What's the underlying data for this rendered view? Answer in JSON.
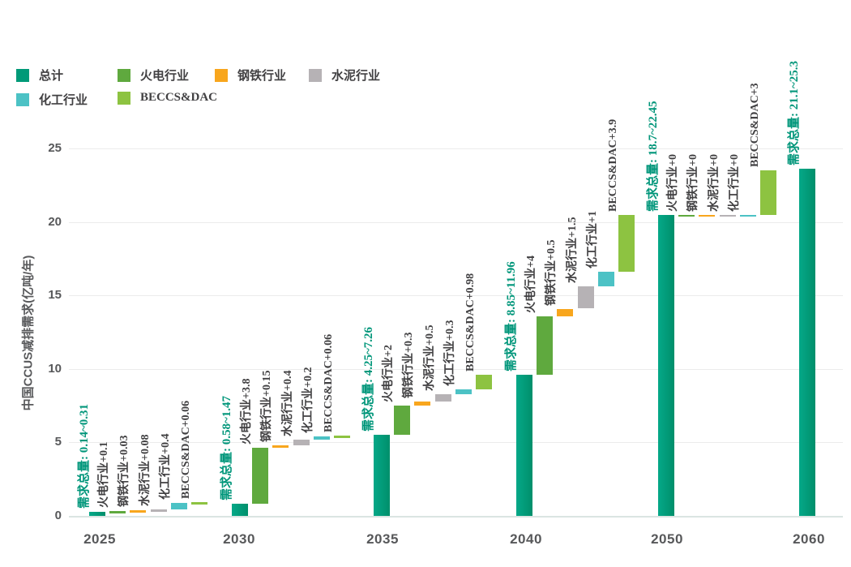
{
  "chart_data": {
    "type": "bar",
    "subtype": "waterfall",
    "ylabel": "中国CCUS减排需求(亿吨/年)",
    "yticks": [
      0,
      5,
      10,
      15,
      20,
      25
    ],
    "ylim": [
      0,
      26.5
    ],
    "grid": true,
    "legend_position": "top-left",
    "colors": {
      "total": "#009a78",
      "thermal_power": "#5fa93e",
      "steel": "#f8a61d",
      "cement": "#b6b2b5",
      "chemical": "#4cc2c5",
      "beccs_dac": "#8dc341",
      "total_label_text": "#00967a",
      "segment_label_text": "#414042",
      "axis_text": "#57585a",
      "gridline": "#ececec",
      "axis_line": "#dbe5e2"
    },
    "legend": [
      {
        "label": "总计",
        "color": "#009a78"
      },
      {
        "label": "火电行业",
        "color": "#5fa93e"
      },
      {
        "label": "钢铁行业",
        "color": "#f8a61d"
      },
      {
        "label": "水泥行业",
        "color": "#b6b2b5"
      },
      {
        "label": "化工行业",
        "color": "#4cc2c5"
      },
      {
        "label": "BECCS&DAC",
        "color": "#8dc341"
      }
    ],
    "x_categories": [
      "2025",
      "2030",
      "2035",
      "2040",
      "2050",
      "2060"
    ],
    "groups": [
      {
        "year": "2025",
        "total_label": "需求总量: 0.14~0.31",
        "total_range": [
          0.14,
          0.31
        ],
        "total_bar_value": 0.25,
        "segments": [
          {
            "name": "火电行业",
            "label": "火电行业+0.1",
            "value": 0.1
          },
          {
            "name": "钢铁行业",
            "label": "钢铁行业+0.03",
            "value": 0.03
          },
          {
            "name": "水泥行业",
            "label": "水泥行业+0.08",
            "value": 0.08
          },
          {
            "name": "化工行业",
            "label": "化工行业+0.4",
            "value": 0.4
          },
          {
            "name": "BECCS&DAC",
            "label": "BECCS&DAC+0.06",
            "value": 0.06
          }
        ]
      },
      {
        "year": "2030",
        "total_label": "需求总量: 0.58~1.47",
        "total_range": [
          0.58,
          1.47
        ],
        "total_bar_value": 0.85,
        "segments": [
          {
            "name": "火电行业",
            "label": "火电行业+3.8",
            "value": 3.8
          },
          {
            "name": "钢铁行业",
            "label": "钢铁行业+0.15",
            "value": 0.15
          },
          {
            "name": "水泥行业",
            "label": "水泥行业+0.4",
            "value": 0.4
          },
          {
            "name": "化工行业",
            "label": "化工行业+0.2",
            "value": 0.2
          },
          {
            "name": "BECCS&DAC",
            "label": "BECCS&DAC+0.06",
            "value": 0.06
          }
        ]
      },
      {
        "year": "2035",
        "total_label": "需求总量: 4.25~7.26",
        "total_range": [
          4.25,
          7.26
        ],
        "total_bar_value": 5.5,
        "segments": [
          {
            "name": "火电行业",
            "label": "火电行业+2",
            "value": 2
          },
          {
            "name": "钢铁行业",
            "label": "钢铁行业+0.3",
            "value": 0.3
          },
          {
            "name": "水泥行业",
            "label": "水泥行业+0.5",
            "value": 0.5
          },
          {
            "name": "化工行业",
            "label": "化工行业+0.3",
            "value": 0.3
          },
          {
            "name": "BECCS&DAC",
            "label": "BECCS&DAC+0.98",
            "value": 0.98
          }
        ]
      },
      {
        "year": "2040",
        "total_label": "需求总量: 8.85~11.96",
        "total_range": [
          8.85,
          11.96
        ],
        "total_bar_value": 9.6,
        "segments": [
          {
            "name": "火电行业",
            "label": "火电行业+4",
            "value": 4
          },
          {
            "name": "钢铁行业",
            "label": "钢铁行业+0.5",
            "value": 0.5
          },
          {
            "name": "水泥行业",
            "label": "水泥行业+1.5",
            "value": 1.5
          },
          {
            "name": "化工行业",
            "label": "化工行业+1",
            "value": 1
          },
          {
            "name": "BECCS&DAC",
            "label": "BECCS&DAC+3.9",
            "value": 3.9
          }
        ]
      },
      {
        "year": "2050",
        "total_label": "需求总量: 18.7~22.45",
        "total_range": [
          18.7,
          22.45
        ],
        "total_bar_value": 20.5,
        "segments": [
          {
            "name": "火电行业",
            "label": "火电行业+0",
            "value": 0
          },
          {
            "name": "钢铁行业",
            "label": "钢铁行业+0",
            "value": 0
          },
          {
            "name": "水泥行业",
            "label": "水泥行业+0",
            "value": 0
          },
          {
            "name": "化工行业",
            "label": "化工行业+0",
            "value": 0
          },
          {
            "name": "BECCS&DAC",
            "label": "BECCS&DAC+3",
            "value": 3
          }
        ]
      },
      {
        "year": "2060",
        "total_label": "需求总量: 21.1~25.3",
        "total_range": [
          21.1,
          25.3
        ],
        "total_bar_value": 23.6,
        "segments": []
      }
    ]
  }
}
